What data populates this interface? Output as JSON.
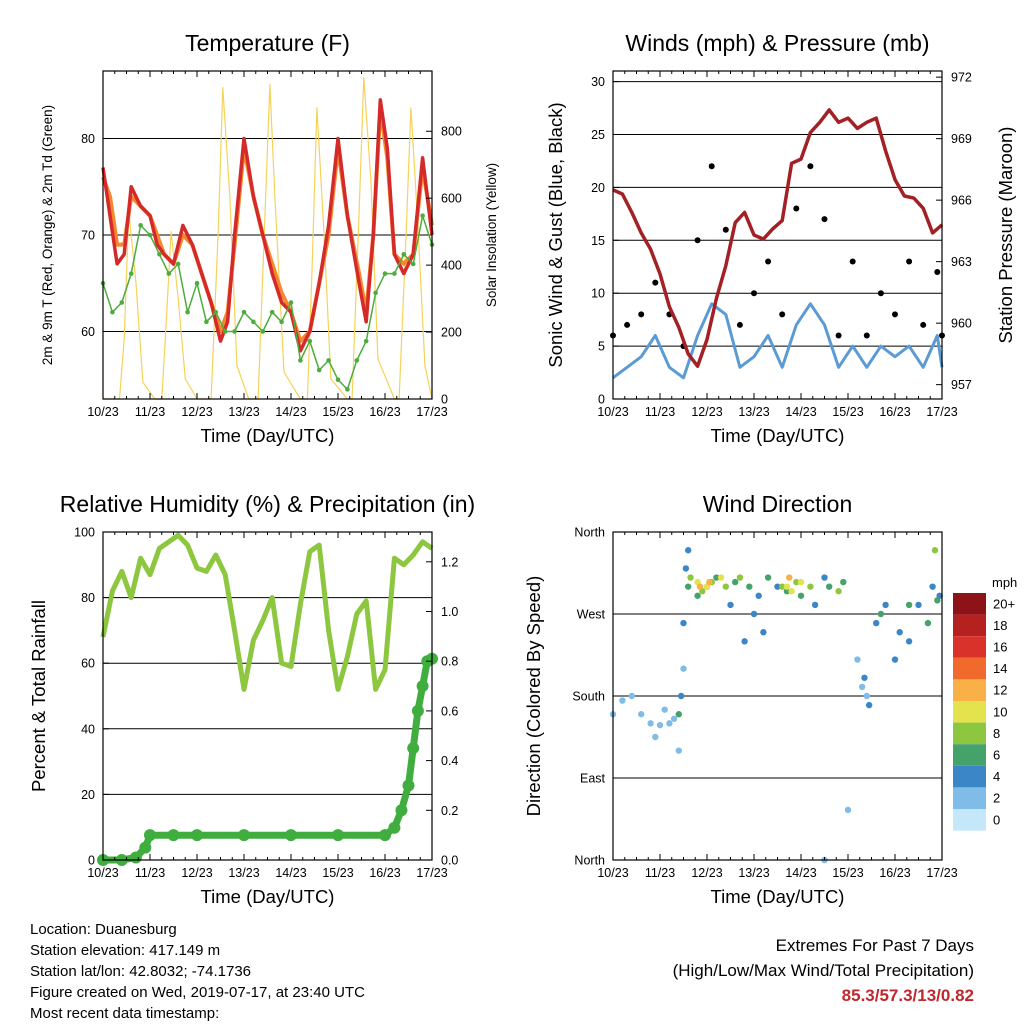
{
  "panels": {
    "temperature": {
      "title": "Temperature (F)",
      "xlabel": "Time (Day/UTC)",
      "ylabel_left": "2m & 9m T (Red, Orange) & 2m Td (Green)",
      "ylabel_right": "Solar Insolation (Yellow)"
    },
    "winds": {
      "title": "Winds (mph) & Pressure (mb)",
      "xlabel": "Time (Day/UTC)",
      "ylabel_left": "Sonic Wind & Gust (Blue, Black)",
      "ylabel_right": "Station Pressure (Maroon)"
    },
    "humidity": {
      "title": "Relative Humidity (%) & Precipitation (in)",
      "xlabel": "Time (Day/UTC)",
      "ylabel_left": "Percent & Total Rainfall"
    },
    "direction": {
      "title": "Wind Direction",
      "xlabel": "Time (Day/UTC)",
      "ylabel_left": "Direction (Colored By Speed)",
      "legend_title": "mph"
    }
  },
  "footer": {
    "location": "Location: Duanesburg",
    "elevation": "Station elevation: 417.149 m",
    "latlon": "Station lat/lon: 42.8032; -74.1736",
    "created": "Figure created on Wed, 2019-07-17, at 23:40 UTC",
    "recent": "Most recent data timestamp:",
    "extremes_title": "Extremes For Past 7 Days",
    "extremes_subtitle": "(High/Low/Max Wind/Total Precipitation)",
    "extremes_values": "85.3/57.3/13/0.82"
  },
  "colors": {
    "temp_2m": "#d42a2a",
    "temp_9m": "#f5872f",
    "dewpoint": "#4cac3c",
    "solar": "#f5d25a",
    "wind": "#5b9bd5",
    "gust": "#000000",
    "pressure": "#a32025",
    "rh": "#8dc63f",
    "precip": "#3fae3f"
  },
  "chart_data": [
    {
      "type": "line",
      "id": "temperature",
      "x_ticks": [
        "10/23",
        "11/23",
        "12/23",
        "13/23",
        "14/23",
        "15/23",
        "16/23",
        "17/23"
      ],
      "xlim": [
        0,
        7
      ],
      "ylim": [
        53,
        87
      ],
      "y_ticks": [
        60,
        70,
        80
      ],
      "y2lim": [
        0,
        980
      ],
      "y2_ticks": [
        0,
        200,
        400,
        600,
        800
      ],
      "series": [
        {
          "key": "temp_2m",
          "x": [
            0,
            0.15,
            0.3,
            0.45,
            0.6,
            0.8,
            1.0,
            1.15,
            1.3,
            1.5,
            1.7,
            1.9,
            2.1,
            2.3,
            2.5,
            2.65,
            2.8,
            3.0,
            3.2,
            3.4,
            3.6,
            3.8,
            4.0,
            4.2,
            4.4,
            4.6,
            4.8,
            5.0,
            5.2,
            5.45,
            5.6,
            5.75,
            5.9,
            6.05,
            6.2,
            6.4,
            6.6,
            6.8,
            7.0
          ],
          "y": [
            77,
            72,
            67,
            68,
            75,
            73,
            72,
            69,
            68,
            67,
            71,
            69,
            66,
            63,
            59,
            61,
            70,
            80,
            74,
            70,
            66,
            63,
            62,
            58,
            60,
            65,
            71,
            80,
            72,
            65,
            61,
            70,
            84,
            79,
            68,
            66,
            68,
            78,
            70
          ]
        },
        {
          "key": "temp_9m",
          "x": [
            0,
            0.15,
            0.3,
            0.45,
            0.6,
            0.8,
            1.0,
            1.15,
            1.3,
            1.5,
            1.7,
            1.9,
            2.1,
            2.3,
            2.5,
            2.65,
            2.8,
            3.0,
            3.2,
            3.4,
            3.6,
            3.8,
            4.0,
            4.2,
            4.4,
            4.6,
            4.8,
            5.0,
            5.2,
            5.45,
            5.6,
            5.75,
            5.9,
            6.05,
            6.2,
            6.4,
            6.6,
            6.8,
            7.0
          ],
          "y": [
            76,
            74,
            69,
            69,
            74,
            73,
            72,
            70,
            68,
            67,
            70,
            69,
            66,
            63,
            60,
            62,
            69,
            79,
            74,
            70,
            67,
            64,
            62,
            59,
            60,
            65,
            70,
            79,
            72,
            66,
            62,
            70,
            83,
            78,
            68,
            67,
            68,
            77,
            71
          ]
        },
        {
          "key": "dewpoint",
          "x": [
            0,
            0.2,
            0.4,
            0.6,
            0.8,
            1.0,
            1.2,
            1.4,
            1.6,
            1.8,
            2.0,
            2.2,
            2.4,
            2.6,
            2.8,
            3.0,
            3.2,
            3.4,
            3.6,
            3.8,
            4.0,
            4.2,
            4.4,
            4.6,
            4.8,
            5.0,
            5.2,
            5.4,
            5.6,
            5.8,
            6.0,
            6.2,
            6.4,
            6.6,
            6.8,
            7.0
          ],
          "y": [
            65,
            62,
            63,
            66,
            71,
            70,
            68,
            66,
            67,
            62,
            65,
            61,
            62,
            60,
            60,
            62,
            61,
            60,
            62,
            61,
            63,
            57,
            59,
            56,
            57,
            55,
            54,
            57,
            59,
            64,
            66,
            66,
            68,
            67,
            72,
            69
          ]
        },
        {
          "key": "solar",
          "x": [
            0,
            0.35,
            0.45,
            0.55,
            0.7,
            0.85,
            1.1,
            1.25,
            1.35,
            1.45,
            1.6,
            1.75,
            2.0,
            2.3,
            2.45,
            2.55,
            2.7,
            2.85,
            3.1,
            3.3,
            3.45,
            3.55,
            3.65,
            3.85,
            4.2,
            4.35,
            4.45,
            4.55,
            4.7,
            4.85,
            5.2,
            5.3,
            5.45,
            5.55,
            5.7,
            5.85,
            6.2,
            6.3,
            6.45,
            6.55,
            6.7,
            6.85,
            7.0
          ],
          "y": [
            0,
            0,
            180,
            560,
            350,
            50,
            0,
            0,
            240,
            500,
            300,
            60,
            0,
            0,
            500,
            930,
            600,
            100,
            0,
            0,
            560,
            940,
            620,
            80,
            0,
            0,
            400,
            870,
            500,
            60,
            0,
            0,
            560,
            960,
            650,
            120,
            0,
            0,
            500,
            870,
            520,
            100,
            0
          ]
        }
      ]
    },
    {
      "type": "scatter",
      "id": "winds",
      "x_ticks": [
        "10/23",
        "11/23",
        "12/23",
        "13/23",
        "14/23",
        "15/23",
        "16/23",
        "17/23"
      ],
      "xlim": [
        0,
        7
      ],
      "ylim": [
        0,
        31
      ],
      "y_ticks": [
        0,
        5,
        10,
        15,
        20,
        25,
        30
      ],
      "y2lim": [
        956.3,
        972.3
      ],
      "y2_ticks": [
        957,
        960,
        963,
        966,
        969,
        972
      ],
      "series": [
        {
          "key": "wind",
          "x": [
            0,
            0.3,
            0.6,
            0.9,
            1.2,
            1.5,
            1.8,
            2.1,
            2.4,
            2.7,
            3.0,
            3.3,
            3.6,
            3.9,
            4.2,
            4.5,
            4.8,
            5.1,
            5.4,
            5.7,
            6.0,
            6.3,
            6.6,
            6.9,
            7.0
          ],
          "y": [
            2,
            3,
            4,
            6,
            3,
            2,
            6,
            9,
            8,
            3,
            4,
            6,
            3,
            7,
            9,
            7,
            3,
            5,
            3,
            5,
            4,
            5,
            3,
            6,
            3
          ]
        },
        {
          "key": "gust",
          "x": [
            0,
            0.3,
            0.6,
            0.9,
            1.2,
            1.5,
            1.8,
            2.1,
            2.4,
            2.7,
            3.0,
            3.3,
            3.6,
            3.9,
            4.2,
            4.5,
            4.8,
            5.1,
            5.4,
            5.7,
            6.0,
            6.3,
            6.6,
            6.9,
            7.0
          ],
          "y": [
            6,
            7,
            8,
            11,
            8,
            5,
            15,
            22,
            16,
            7,
            10,
            13,
            8,
            18,
            22,
            17,
            6,
            13,
            6,
            10,
            8,
            13,
            7,
            12,
            6
          ]
        },
        {
          "key": "pressure",
          "x": [
            0,
            0.2,
            0.4,
            0.6,
            0.8,
            1.0,
            1.2,
            1.4,
            1.6,
            1.8,
            2.0,
            2.2,
            2.4,
            2.6,
            2.8,
            3.0,
            3.2,
            3.4,
            3.6,
            3.8,
            4.0,
            4.2,
            4.4,
            4.6,
            4.8,
            5.0,
            5.2,
            5.4,
            5.6,
            5.8,
            6.0,
            6.2,
            6.4,
            6.6,
            6.8,
            7.0
          ],
          "y": [
            966.5,
            966.3,
            965.4,
            964.4,
            963.6,
            962.4,
            960.8,
            959.8,
            958.5,
            957.9,
            959.2,
            961.2,
            962.8,
            964.9,
            965.4,
            964.3,
            964.1,
            964.6,
            965.0,
            967.8,
            968.0,
            969.3,
            969.8,
            970.4,
            969.8,
            970.0,
            969.5,
            969.8,
            970.0,
            968.4,
            967.0,
            966.2,
            966.1,
            965.6,
            964.4,
            964.8
          ]
        }
      ]
    },
    {
      "type": "scatter",
      "id": "humidity",
      "x_ticks": [
        "10/23",
        "11/23",
        "12/23",
        "13/23",
        "14/23",
        "15/23",
        "16/23",
        "17/23"
      ],
      "xlim": [
        0,
        7
      ],
      "ylim": [
        0,
        100
      ],
      "y_ticks": [
        0,
        20,
        40,
        60,
        80,
        100
      ],
      "y2lim": [
        0,
        1.32
      ],
      "y2_ticks": [
        0.0,
        0.2,
        0.4,
        0.6,
        0.8,
        1.0,
        1.2
      ],
      "series": [
        {
          "key": "rh",
          "x": [
            0,
            0.2,
            0.4,
            0.6,
            0.8,
            1.0,
            1.2,
            1.4,
            1.6,
            1.8,
            2.0,
            2.2,
            2.4,
            2.6,
            2.8,
            3.0,
            3.2,
            3.4,
            3.6,
            3.8,
            4.0,
            4.2,
            4.4,
            4.6,
            4.8,
            5.0,
            5.2,
            5.4,
            5.6,
            5.8,
            6.0,
            6.2,
            6.4,
            6.6,
            6.8,
            7.0
          ],
          "y": [
            68,
            82,
            88,
            80,
            92,
            87,
            95,
            97,
            99,
            96,
            89,
            88,
            93,
            87,
            70,
            52,
            67,
            73,
            80,
            60,
            59,
            78,
            94,
            96,
            70,
            52,
            62,
            75,
            79,
            52,
            58,
            92,
            90,
            93,
            97,
            95
          ]
        },
        {
          "key": "precip",
          "x": [
            0,
            0.4,
            0.7,
            0.9,
            1.0,
            1.5,
            2.0,
            3.0,
            4.0,
            5.0,
            6.0,
            6.2,
            6.35,
            6.5,
            6.6,
            6.7,
            6.8,
            6.9,
            7.0
          ],
          "y": [
            0,
            0,
            0.01,
            0.05,
            0.1,
            0.1,
            0.1,
            0.1,
            0.1,
            0.1,
            0.1,
            0.13,
            0.2,
            0.3,
            0.45,
            0.6,
            0.7,
            0.8,
            0.81
          ]
        }
      ]
    },
    {
      "type": "scatter",
      "id": "direction",
      "x_ticks": [
        "10/23",
        "11/23",
        "12/23",
        "13/23",
        "14/23",
        "15/23",
        "16/23",
        "17/23"
      ],
      "xlim": [
        0,
        7
      ],
      "ylim": [
        0,
        360
      ],
      "y_ticks": [
        0,
        90,
        180,
        270,
        360
      ],
      "y_tick_labels": [
        "North",
        "East",
        "South",
        "West",
        "North"
      ],
      "legend": {
        "labels": [
          "0",
          "2",
          "4",
          "6",
          "8",
          "10",
          "12",
          "14",
          "16",
          "18",
          "20+"
        ],
        "colors": [
          "#c4e7f9",
          "#7fbde8",
          "#3b86c6",
          "#45a26a",
          "#8dc63f",
          "#e4e34d",
          "#f9b047",
          "#f06a2c",
          "#d9322a",
          "#b5211f",
          "#8e1318"
        ]
      },
      "series": [
        {
          "key": "direction_speed_2",
          "x": [
            0,
            0.2,
            0.4,
            0.6,
            0.8,
            0.9,
            1.0,
            1.1,
            1.2,
            1.3,
            1.4,
            1.5,
            4.5,
            5.0,
            5.2,
            5.3,
            5.4
          ],
          "y": [
            160,
            175,
            180,
            160,
            150,
            135,
            148,
            165,
            150,
            155,
            120,
            210,
            0,
            55,
            220,
            190,
            180
          ]
        },
        {
          "key": "direction_speed_4",
          "x": [
            1.45,
            1.5,
            1.55,
            1.6,
            2.5,
            2.8,
            3.0,
            3.1,
            3.2,
            3.5,
            4.3,
            4.5,
            5.35,
            5.45,
            5.6,
            5.8,
            6.0,
            6.1,
            6.3,
            6.5,
            6.8,
            6.95
          ],
          "y": [
            180,
            260,
            320,
            340,
            280,
            240,
            270,
            290,
            250,
            300,
            280,
            310,
            200,
            170,
            260,
            280,
            220,
            250,
            240,
            280,
            300,
            290
          ]
        },
        {
          "key": "direction_speed_6",
          "x": [
            1.4,
            1.6,
            1.8,
            2.0,
            2.2,
            2.6,
            2.9,
            3.3,
            3.7,
            4.0,
            4.6,
            4.9,
            5.7,
            6.3,
            6.7,
            6.9
          ],
          "y": [
            160,
            300,
            290,
            300,
            310,
            305,
            300,
            310,
            295,
            290,
            300,
            305,
            270,
            280,
            260,
            285
          ]
        },
        {
          "key": "direction_speed_8",
          "x": [
            1.65,
            1.9,
            2.1,
            2.4,
            2.7,
            3.6,
            3.9,
            4.2,
            4.8,
            6.85
          ],
          "y": [
            310,
            295,
            305,
            300,
            310,
            300,
            305,
            300,
            295,
            340
          ]
        },
        {
          "key": "direction_speed_10",
          "x": [
            1.8,
            2.0,
            2.3,
            3.7,
            3.8,
            4.0
          ],
          "y": [
            305,
            300,
            310,
            300,
            295,
            305
          ]
        },
        {
          "key": "direction_speed_12",
          "x": [
            1.85,
            2.05,
            3.75
          ],
          "y": [
            300,
            305,
            310
          ]
        }
      ]
    }
  ]
}
